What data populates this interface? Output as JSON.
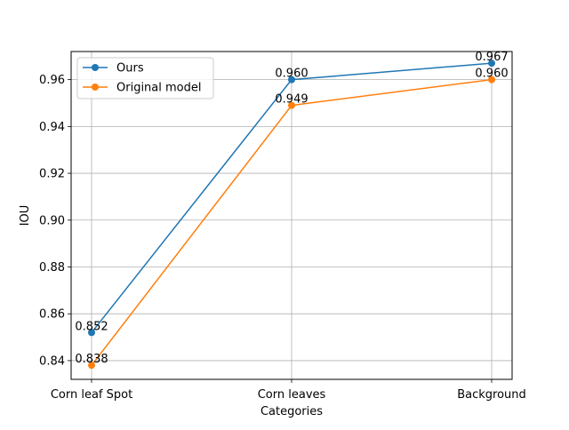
{
  "chart_data": {
    "type": "line",
    "title": "",
    "xlabel": "Categories",
    "ylabel": "IOU",
    "categories": [
      "Corn leaf Spot",
      "Corn leaves",
      "Background"
    ],
    "ylim": [
      0.832,
      0.972
    ],
    "yticks": [
      "0.84",
      "0.86",
      "0.88",
      "0.90",
      "0.92",
      "0.94",
      "0.96"
    ],
    "grid": true,
    "legend_position": "top-left",
    "series": [
      {
        "name": "Ours",
        "color": "#1f77b4",
        "values": [
          0.852,
          0.96,
          0.967
        ],
        "labels": [
          "0.852",
          "0.960",
          "0.967"
        ]
      },
      {
        "name": "Original model",
        "color": "#ff7f0e",
        "values": [
          0.838,
          0.949,
          0.96
        ],
        "labels": [
          "0.838",
          "0.949",
          "0.960"
        ]
      }
    ]
  }
}
